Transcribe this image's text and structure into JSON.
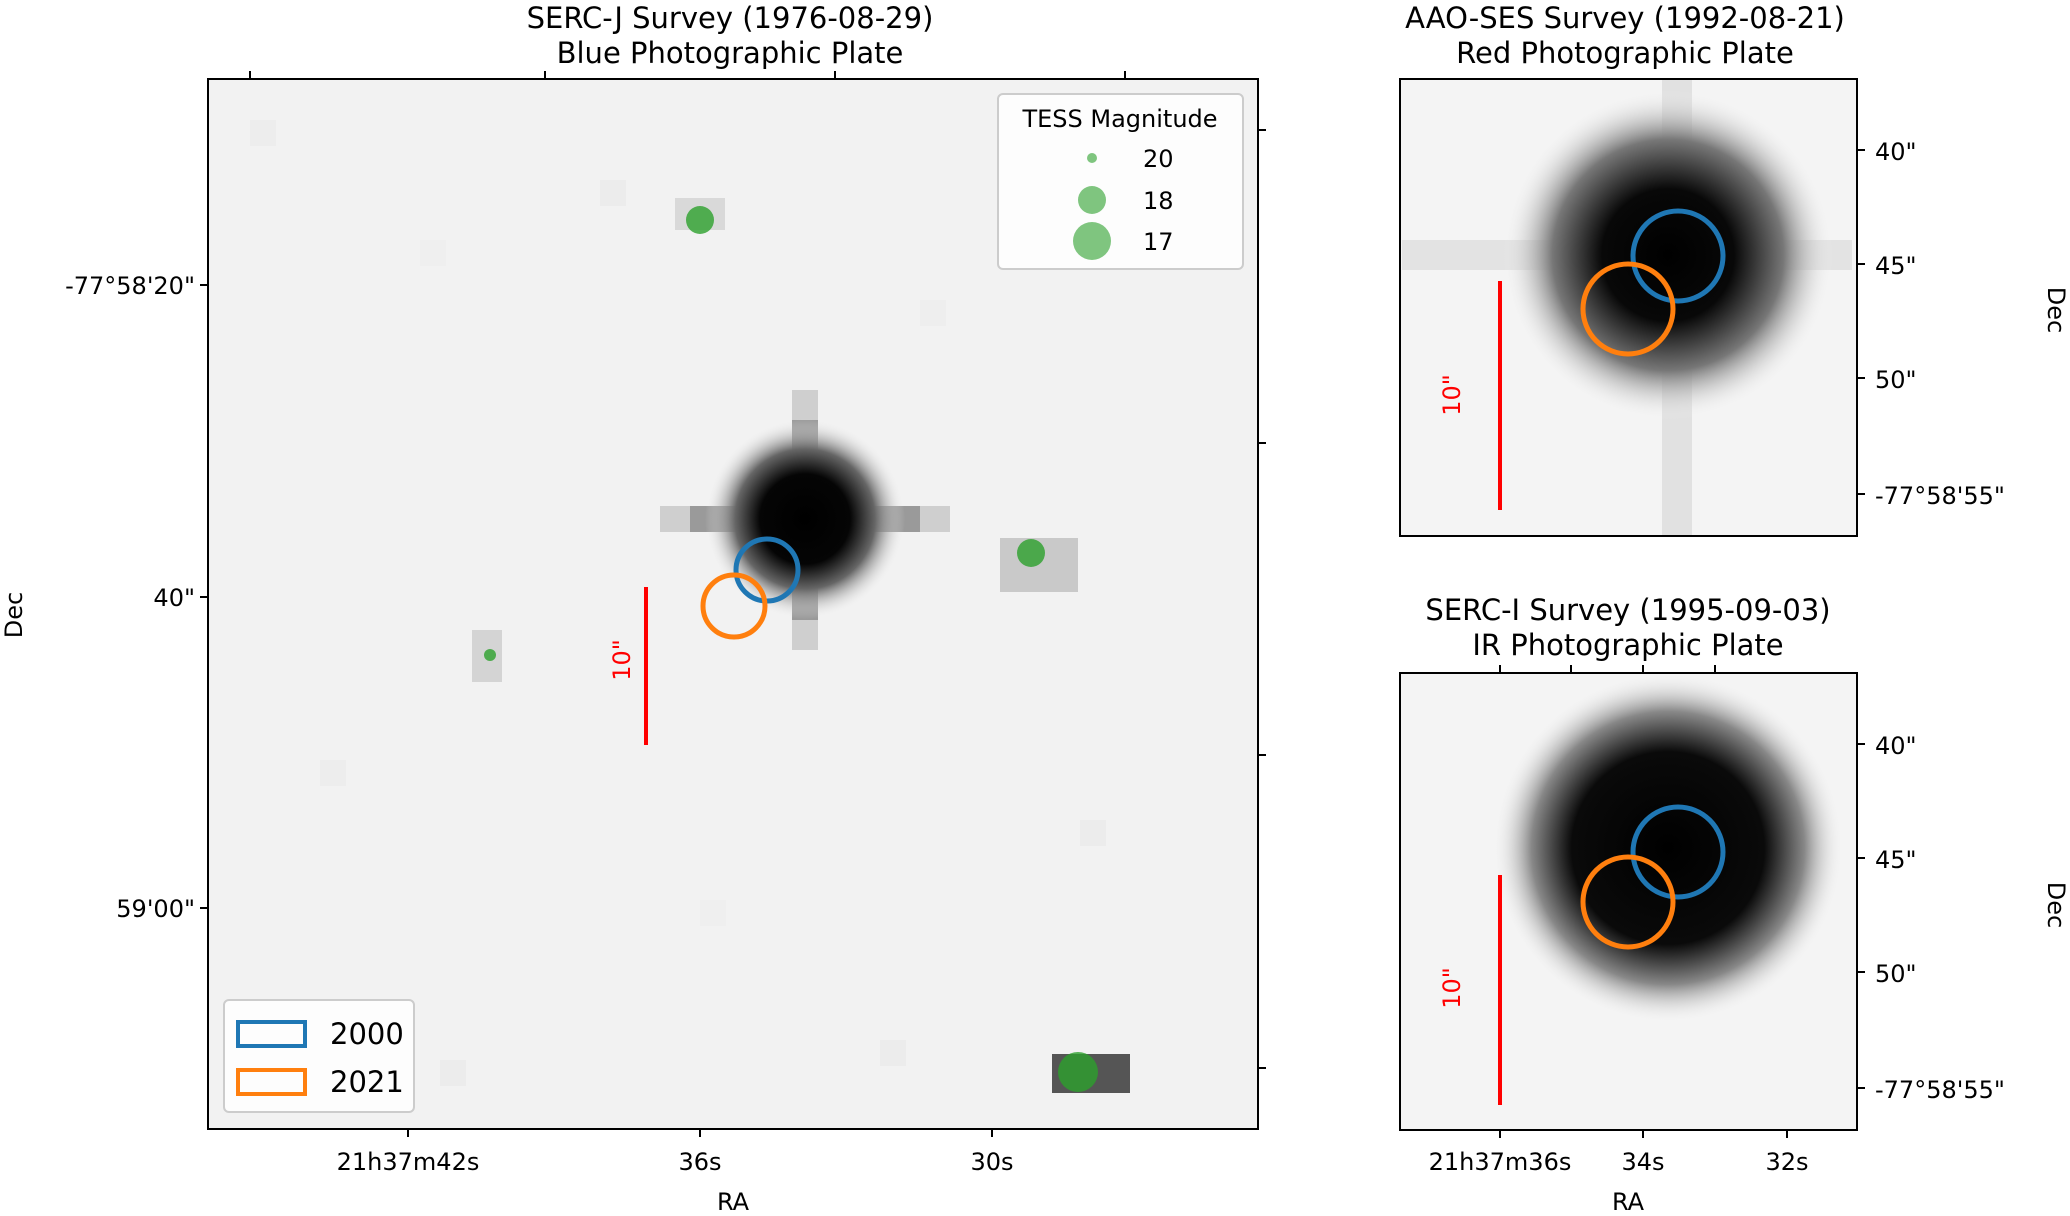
{
  "panels": {
    "main": {
      "title_line1": "SERC-J Survey (1976-08-29)",
      "title_line2": "Blue Photographic Plate",
      "dec_ticks": [
        "-77°58'20\"",
        "40\"",
        "59'00\""
      ],
      "ra_ticks": [
        "21h37m42s",
        "36s",
        "30s"
      ],
      "xlabel": "RA",
      "ylabel": "Dec",
      "scale_label": "10\""
    },
    "top_right": {
      "title_line1": "AAO-SES Survey (1992-08-21)",
      "title_line2": "Red Photographic Plate",
      "dec_ticks": [
        "40\"",
        "45\"",
        "50\"",
        "-77°58'55\""
      ],
      "ylabel": "Dec",
      "scale_label": "10\""
    },
    "bottom_right": {
      "title_line1": "SERC-I Survey (1995-09-03)",
      "title_line2": "IR Photographic Plate",
      "dec_ticks": [
        "40\"",
        "45\"",
        "50\"",
        "-77°58'55\""
      ],
      "ra_ticks": [
        "21h37m36s",
        "34s",
        "32s"
      ],
      "xlabel": "RA",
      "ylabel": "Dec",
      "scale_label": "10\""
    }
  },
  "tess_legend": {
    "title": "TESS Magnitude",
    "entries": [
      "20",
      "18",
      "17"
    ]
  },
  "epoch_legend": {
    "entries": [
      "2000",
      "2021"
    ]
  },
  "colors": {
    "epoch_2000": "#1f77b4",
    "epoch_2021": "#ff7f0e",
    "tess_star": "#2ca02c",
    "scale_bar": "#ff0000"
  }
}
